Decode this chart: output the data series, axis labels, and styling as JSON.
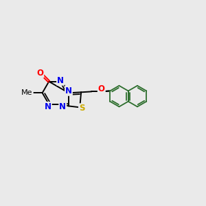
{
  "background_color": "#eaeaea",
  "atom_colors": {
    "N": "#0000ee",
    "O": "#ff0000",
    "S": "#ccaa00",
    "C": "#000000"
  },
  "aromatic_color": "#2d6e2d",
  "bond_color": "#000000",
  "bond_lw": 1.4,
  "aromatic_lw": 1.3,
  "font_size": 8.5
}
